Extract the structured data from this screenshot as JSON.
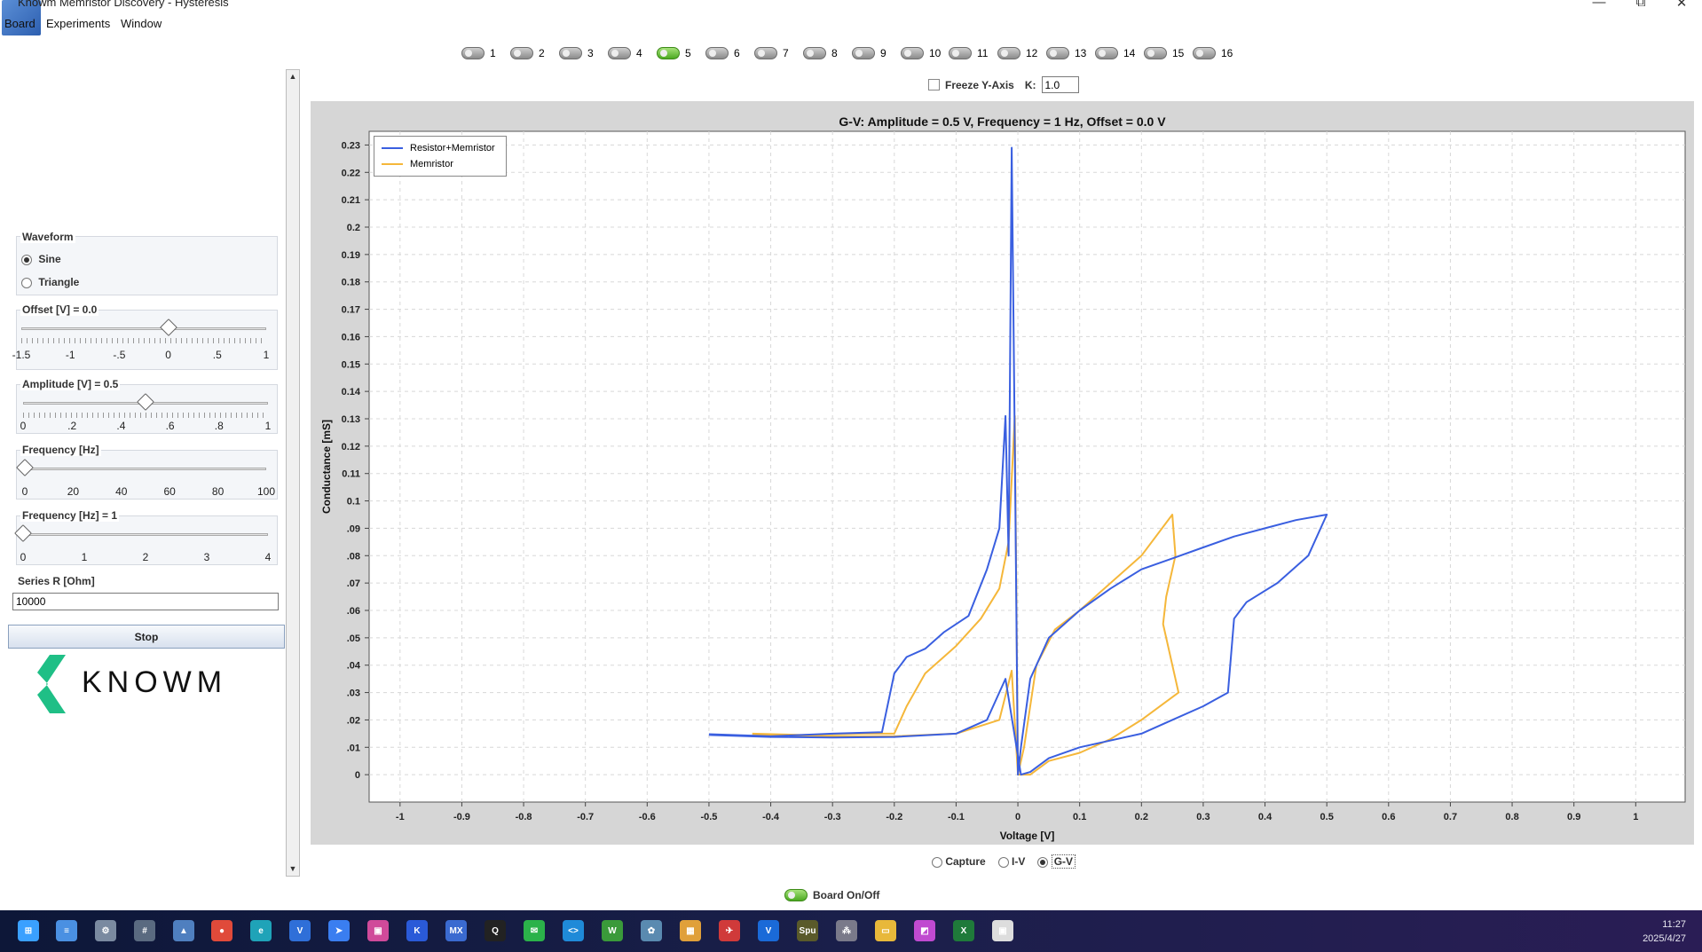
{
  "window": {
    "title": "Knowm Memristor Discovery - Hysteresis",
    "minimize": "—",
    "maximize": "⧉",
    "close": "✕"
  },
  "menu": [
    {
      "label": "Board"
    },
    {
      "label": "Experiments"
    },
    {
      "label": "Window"
    }
  ],
  "channels": [
    {
      "label": "1",
      "on": false
    },
    {
      "label": "2",
      "on": false
    },
    {
      "label": "3",
      "on": false
    },
    {
      "label": "4",
      "on": false
    },
    {
      "label": "5",
      "on": true
    },
    {
      "label": "6",
      "on": false
    },
    {
      "label": "7",
      "on": false
    },
    {
      "label": "8",
      "on": false
    },
    {
      "label": "9",
      "on": false
    },
    {
      "label": "10",
      "on": false
    },
    {
      "label": "11",
      "on": false
    },
    {
      "label": "12",
      "on": false
    },
    {
      "label": "13",
      "on": false
    },
    {
      "label": "14",
      "on": false
    },
    {
      "label": "15",
      "on": false
    },
    {
      "label": "16",
      "on": false
    }
  ],
  "freeze": {
    "label": "Freeze Y-Axis",
    "k_label": "K:",
    "k_value": "1.0",
    "checked": false
  },
  "waveform": {
    "title": "Waveform",
    "options": [
      "Sine",
      "Triangle"
    ],
    "selected": "Sine"
  },
  "offset": {
    "title": "Offset [V] = 0.0",
    "ticks": [
      "-1.5",
      "-1",
      "-.5",
      "0",
      ".5",
      "1"
    ],
    "value": 0.0,
    "min": -1.5,
    "max": 1.0
  },
  "amplitude": {
    "title": "Amplitude [V] = 0.5",
    "ticks": [
      "0",
      ".2",
      ".4",
      ".6",
      ".8",
      "1"
    ],
    "value": 0.5,
    "min": 0,
    "max": 1
  },
  "frequency": {
    "title": "Frequency [Hz]",
    "ticks": [
      "0",
      "20",
      "40",
      "60",
      "80",
      "100"
    ],
    "value": 0,
    "min": 0,
    "max": 100
  },
  "frequency_fine": {
    "title": "Frequency [Hz] = 1",
    "ticks": [
      "0",
      "1",
      "2",
      "3",
      "4"
    ],
    "value": 0,
    "min": 0,
    "max": 4
  },
  "series_r": {
    "label": "Series R [Ohm]",
    "value": "10000"
  },
  "stop_button": "Stop",
  "logo_text": "KNOWM",
  "plot_modes": {
    "options": [
      "Capture",
      "I-V",
      "G-V"
    ],
    "selected": "G-V"
  },
  "board": {
    "label": "Board On/Off",
    "on": true
  },
  "taskbar": {
    "time": "11:27",
    "date": "2025/4/27"
  },
  "colors": {
    "resistor_memristor": "#3a5fe0",
    "memristor": "#f5b73a",
    "accent_green": "#5cbf2a",
    "knowm_green": "#1fbf86"
  },
  "chart_data": {
    "type": "line",
    "title": "G-V: Amplitude = 0.5 V, Frequency = 1 Hz, Offset = 0.0 V",
    "xlabel": "Voltage [V]",
    "ylabel": "Conductance [mS]",
    "xlim": [
      -1.05,
      1.08
    ],
    "ylim": [
      -0.01,
      0.235
    ],
    "xticks": [
      -1,
      -0.9,
      -0.8,
      -0.7,
      -0.6,
      -0.5,
      -0.4,
      -0.3,
      -0.2,
      -0.1,
      0,
      0.1,
      0.2,
      0.3,
      0.4,
      0.5,
      0.6,
      0.7,
      0.8,
      0.9,
      1
    ],
    "xtick_labels": [
      "-1",
      "-0.9",
      "-0.8",
      "-0.7",
      "-0.6",
      "-0.5",
      "-0.4",
      "-0.3",
      "-0.2",
      "-0.1",
      "0",
      "0.1",
      "0.2",
      "0.3",
      "0.4",
      "0.5",
      "0.6",
      "0.7",
      "0.8",
      "0.9",
      "1"
    ],
    "yticks": [
      0,
      0.01,
      0.02,
      0.03,
      0.04,
      0.05,
      0.06,
      0.07,
      0.08,
      0.09,
      0.1,
      0.11,
      0.12,
      0.13,
      0.14,
      0.15,
      0.16,
      0.17,
      0.18,
      0.19,
      0.2,
      0.21,
      0.22,
      0.23
    ],
    "ytick_labels": [
      "0",
      ".01",
      ".02",
      ".03",
      ".04",
      ".05",
      ".06",
      ".07",
      ".08",
      ".09",
      "0.1",
      "0.11",
      "0.12",
      "0.13",
      "0.14",
      "0.15",
      "0.16",
      "0.17",
      "0.18",
      "0.19",
      "0.2",
      "0.21",
      "0.22",
      "0.23"
    ],
    "grid": true,
    "legend": "top-left",
    "series": [
      {
        "name": "Resistor+Memristor",
        "color": "#3a5fe0",
        "points": [
          [
            -0.5,
            0.0148
          ],
          [
            -0.4,
            0.014
          ],
          [
            -0.3,
            0.015
          ],
          [
            -0.22,
            0.0155
          ],
          [
            -0.2,
            0.037
          ],
          [
            -0.18,
            0.043
          ],
          [
            -0.15,
            0.046
          ],
          [
            -0.12,
            0.052
          ],
          [
            -0.08,
            0.058
          ],
          [
            -0.05,
            0.075
          ],
          [
            -0.03,
            0.09
          ],
          [
            -0.02,
            0.131
          ],
          [
            -0.015,
            0.08
          ],
          [
            -0.01,
            0.229
          ],
          [
            -0.005,
            0.12
          ],
          [
            0.0,
            0.0
          ],
          [
            0.005,
            0.01
          ],
          [
            0.02,
            0.035
          ],
          [
            0.05,
            0.05
          ],
          [
            0.1,
            0.06
          ],
          [
            0.15,
            0.068
          ],
          [
            0.2,
            0.075
          ],
          [
            0.25,
            0.079
          ],
          [
            0.3,
            0.083
          ],
          [
            0.35,
            0.087
          ],
          [
            0.4,
            0.09
          ],
          [
            0.45,
            0.093
          ],
          [
            0.5,
            0.095
          ],
          [
            0.47,
            0.08
          ],
          [
            0.42,
            0.07
          ],
          [
            0.37,
            0.063
          ],
          [
            0.35,
            0.057
          ],
          [
            0.34,
            0.03
          ],
          [
            0.3,
            0.025
          ],
          [
            0.25,
            0.02
          ],
          [
            0.2,
            0.015
          ],
          [
            0.1,
            0.01
          ],
          [
            0.05,
            0.006
          ],
          [
            0.02,
            0.001
          ],
          [
            0.005,
            0.0
          ],
          [
            -0.02,
            0.035
          ],
          [
            -0.05,
            0.02
          ],
          [
            -0.1,
            0.015
          ],
          [
            -0.2,
            0.0138
          ],
          [
            -0.3,
            0.0136
          ],
          [
            -0.4,
            0.0138
          ],
          [
            -0.5,
            0.0145
          ]
        ]
      },
      {
        "name": "Memristor",
        "color": "#f5b73a",
        "points": [
          [
            -0.43,
            0.015
          ],
          [
            -0.35,
            0.0145
          ],
          [
            -0.25,
            0.015
          ],
          [
            -0.2,
            0.015
          ],
          [
            -0.18,
            0.025
          ],
          [
            -0.15,
            0.037
          ],
          [
            -0.1,
            0.047
          ],
          [
            -0.06,
            0.057
          ],
          [
            -0.03,
            0.068
          ],
          [
            -0.015,
            0.085
          ],
          [
            -0.005,
            0.131
          ],
          [
            0.0,
            0.0
          ],
          [
            0.01,
            0.01
          ],
          [
            0.03,
            0.04
          ],
          [
            0.06,
            0.053
          ],
          [
            0.1,
            0.06
          ],
          [
            0.15,
            0.07
          ],
          [
            0.2,
            0.08
          ],
          [
            0.25,
            0.095
          ],
          [
            0.255,
            0.08
          ],
          [
            0.24,
            0.065
          ],
          [
            0.235,
            0.055
          ],
          [
            0.26,
            0.03
          ],
          [
            0.2,
            0.02
          ],
          [
            0.15,
            0.013
          ],
          [
            0.1,
            0.008
          ],
          [
            0.05,
            0.005
          ],
          [
            0.02,
            0.0
          ],
          [
            0.0,
            0.0
          ],
          [
            -0.01,
            0.038
          ],
          [
            -0.03,
            0.02
          ],
          [
            -0.1,
            0.015
          ],
          [
            -0.2,
            0.014
          ],
          [
            -0.3,
            0.014
          ],
          [
            -0.43,
            0.0145
          ]
        ]
      }
    ]
  }
}
